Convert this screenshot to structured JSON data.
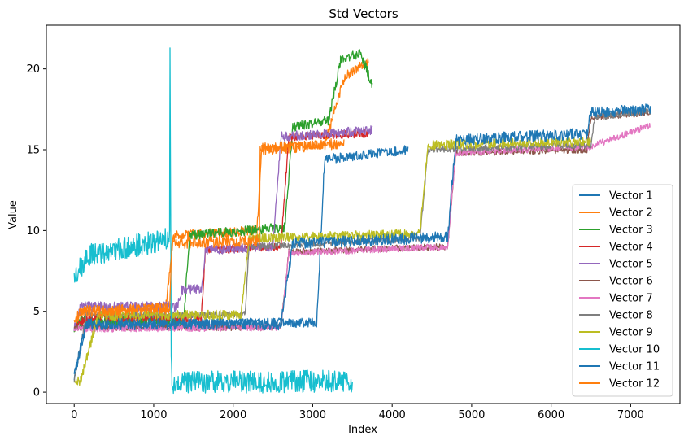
{
  "chart_data": {
    "type": "line",
    "title": "Std Vectors",
    "xlabel": "Index",
    "ylabel": "Value",
    "xlim": [
      -350,
      7620
    ],
    "ylim": [
      -0.7,
      22.7
    ],
    "xticks": [
      0,
      1000,
      2000,
      3000,
      4000,
      5000,
      6000,
      7000
    ],
    "yticks": [
      0,
      5,
      10,
      15,
      20
    ],
    "legend": "lower-right",
    "series": [
      {
        "name": "Vector 1",
        "color": "#1f77b4",
        "noise": 0.3,
        "x": [
          0,
          150,
          3050,
          3150,
          4200
        ],
        "y": [
          1.0,
          4.2,
          4.3,
          14.4,
          15.0
        ]
      },
      {
        "name": "Vector 2",
        "color": "#ff7f0e",
        "noise": 0.3,
        "x": [
          0,
          80,
          1150,
          1250,
          2300,
          2360,
          3150,
          3400,
          3700
        ],
        "y": [
          4.0,
          5.0,
          5.2,
          9.7,
          10.0,
          15.2,
          15.3,
          19.5,
          20.5
        ]
      },
      {
        "name": "Vector 3",
        "color": "#2ca02c",
        "noise": 0.3,
        "x": [
          0,
          80,
          1380,
          1450,
          2650,
          2750,
          3200,
          3350,
          3600,
          3750
        ],
        "y": [
          3.9,
          4.4,
          4.5,
          9.7,
          10.2,
          16.4,
          16.8,
          20.5,
          21.0,
          19.0
        ]
      },
      {
        "name": "Vector 4",
        "color": "#d62728",
        "noise": 0.25,
        "x": [
          0,
          150,
          1600,
          1650,
          2600,
          2700,
          3700
        ],
        "y": [
          4.0,
          4.6,
          4.6,
          8.8,
          9.0,
          15.8,
          16.0
        ]
      },
      {
        "name": "Vector 5",
        "color": "#9467bd",
        "noise": 0.3,
        "x": [
          0,
          80,
          1300,
          1350,
          1600,
          1650,
          2500,
          2600,
          3750
        ],
        "y": [
          3.9,
          5.3,
          5.3,
          6.3,
          6.4,
          8.8,
          9.0,
          15.8,
          16.2
        ]
      },
      {
        "name": "Vector 6",
        "color": "#8c564b",
        "noise": 0.2,
        "x": [
          0,
          150,
          2600,
          2700,
          4700,
          4800,
          6450,
          6500,
          7250
        ],
        "y": [
          4.0,
          4.0,
          4.0,
          8.7,
          9.0,
          14.8,
          15.0,
          17.0,
          17.3
        ]
      },
      {
        "name": "Vector 7",
        "color": "#e377c2",
        "noise": 0.2,
        "x": [
          0,
          150,
          2600,
          2700,
          4700,
          4800,
          6500,
          7250
        ],
        "y": [
          3.9,
          3.9,
          4.0,
          8.6,
          9.0,
          14.8,
          15.2,
          16.5
        ]
      },
      {
        "name": "Vector 8",
        "color": "#7f7f7f",
        "noise": 0.2,
        "x": [
          0,
          150,
          2150,
          2200,
          4350,
          4450,
          6500,
          6550,
          7250
        ],
        "y": [
          0.6,
          4.8,
          4.8,
          9.0,
          9.5,
          15.0,
          15.3,
          17.0,
          17.4
        ]
      },
      {
        "name": "Vector 9",
        "color": "#bcbd22",
        "noise": 0.3,
        "x": [
          0,
          80,
          300,
          2100,
          2200,
          4350,
          4450,
          6500
        ],
        "y": [
          0.6,
          0.7,
          4.7,
          4.8,
          9.5,
          9.8,
          15.3,
          15.5
        ]
      },
      {
        "name": "Vector 10",
        "color": "#17becf",
        "noise": 0.7,
        "x": [
          0,
          200,
          1200,
          1205,
          1220,
          1230,
          3500
        ],
        "y": [
          7.2,
          8.5,
          9.5,
          21.0,
          2.5,
          0.6,
          0.7
        ]
      },
      {
        "name": "Vector 11",
        "color": "#1f77b4",
        "noise": 0.35,
        "x": [
          0,
          150,
          2600,
          2750,
          4700,
          4800,
          6450,
          6500,
          7250
        ],
        "y": [
          1.0,
          4.2,
          4.2,
          9.2,
          9.6,
          15.6,
          16.0,
          17.3,
          17.5
        ]
      },
      {
        "name": "Vector 12",
        "color": "#ff7f0e",
        "noise": 0.35,
        "x": [
          0,
          80,
          1200,
          1230,
          2330,
          2340,
          3400
        ],
        "y": [
          4.3,
          5.0,
          5.2,
          9.2,
          9.4,
          15.0,
          15.4
        ]
      }
    ]
  }
}
